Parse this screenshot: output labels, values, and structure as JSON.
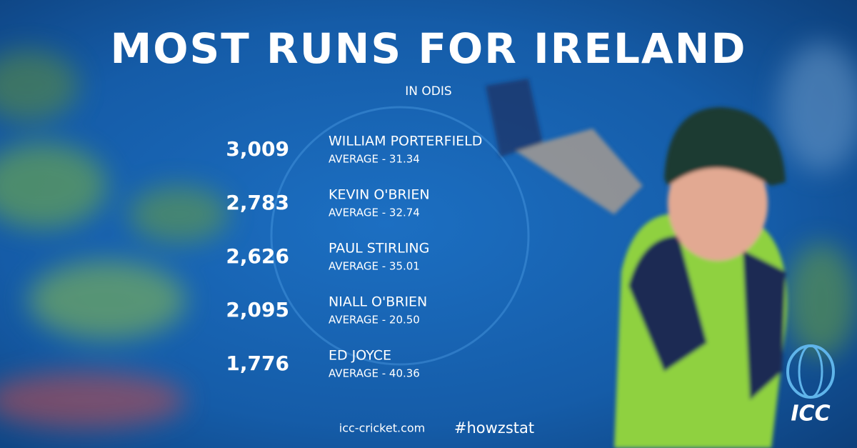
{
  "header": {
    "title": "MOST RUNS FOR IRELAND",
    "subtitle": "IN ODIS"
  },
  "rows": [
    {
      "runs": "3,009",
      "name": "WILLIAM PORTERFIELD",
      "average": "AVERAGE - 31.34"
    },
    {
      "runs": "2,783",
      "name": "KEVIN O'BRIEN",
      "average": "AVERAGE - 32.74"
    },
    {
      "runs": "2,626",
      "name": "PAUL STIRLING",
      "average": "AVERAGE - 35.01"
    },
    {
      "runs": "2,095",
      "name": "NIALL O'BRIEN",
      "average": "AVERAGE - 20.50"
    },
    {
      "runs": "1,776",
      "name": "ED JOYCE",
      "average": "AVERAGE - 40.36"
    }
  ],
  "footer": {
    "site": "icc-cricket.com",
    "hashtag": "#howzstat",
    "logo": "ICC"
  }
}
